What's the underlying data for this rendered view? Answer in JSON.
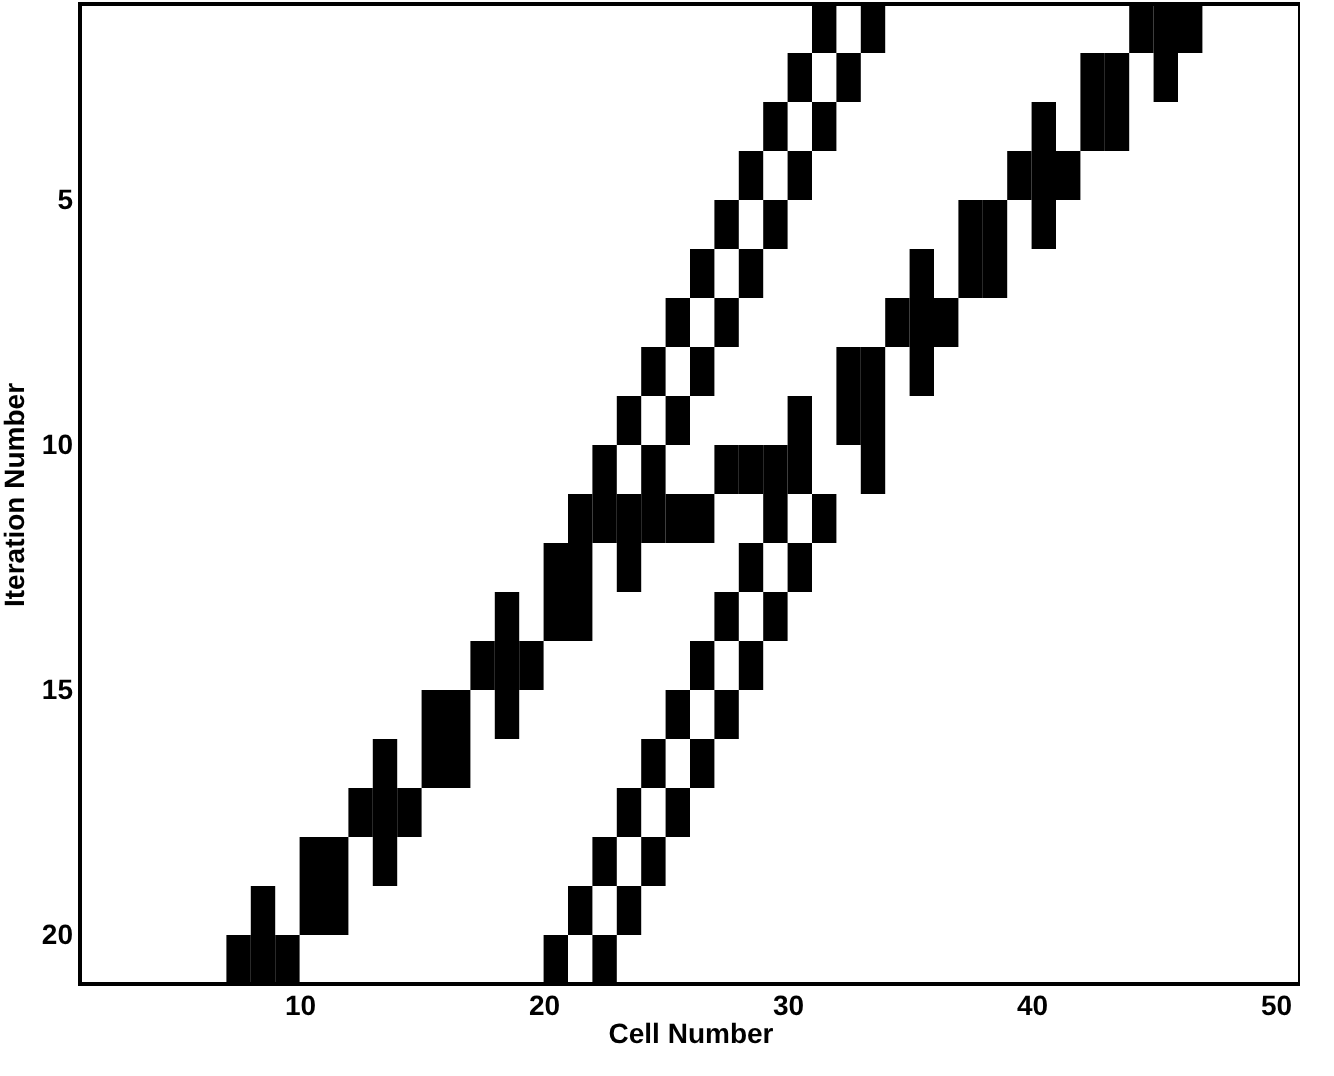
{
  "chart_data": {
    "type": "scatter",
    "xlabel": "Cell Number",
    "ylabel": "Iteration Number",
    "marker": "square",
    "grid": false,
    "xlim": [
      1,
      51
    ],
    "xticks": [
      10,
      20,
      30,
      40,
      50
    ],
    "ylim": [
      21,
      1
    ],
    "yticks": [
      5,
      10,
      15,
      20
    ],
    "series": [
      {
        "color": "#000000",
        "x": [
          31.5,
          33.5,
          44.5,
          45.5,
          46.5,
          30.5,
          32.5,
          42.5,
          43.5,
          45.5,
          29.5,
          31.5,
          40.5,
          42.5,
          43.5,
          28.5,
          30.5,
          39.5,
          40.5,
          41.5,
          27.5,
          29.5,
          37.5,
          38.5,
          40.5,
          26.5,
          28.5,
          35.5,
          37.5,
          38.5,
          25.5,
          27.5,
          34.5,
          35.5,
          36.5,
          24.5,
          26.5,
          32.5,
          33.5,
          35.5,
          23.5,
          25.5,
          30.5,
          32.5,
          33.5,
          22.5,
          24.5,
          27.5,
          28.5,
          29.5,
          30.5,
          33.5,
          21.5,
          22.5,
          23.5,
          24.5,
          25.5,
          26.5,
          29.5,
          31.5,
          20.5,
          21.5,
          23.5,
          28.5,
          30.5,
          18.5,
          20.5,
          21.5,
          27.5,
          29.5,
          17.5,
          18.5,
          19.5,
          26.5,
          28.5,
          15.5,
          16.5,
          18.5,
          25.5,
          27.5,
          13.5,
          15.5,
          16.5,
          24.5,
          26.5,
          12.5,
          13.5,
          14.5,
          23.5,
          25.5,
          10.5,
          11.5,
          13.5,
          22.5,
          24.5,
          8.5,
          10.5,
          11.5,
          21.5,
          23.5,
          7.5,
          8.5,
          9.5,
          20.5,
          22.5
        ],
        "values": [
          1.5,
          1.5,
          1.5,
          1.5,
          1.5,
          2.5,
          2.5,
          2.5,
          2.5,
          2.5,
          3.5,
          3.5,
          3.5,
          3.5,
          3.5,
          4.5,
          4.5,
          4.5,
          4.5,
          4.5,
          5.5,
          5.5,
          5.5,
          5.5,
          5.5,
          6.5,
          6.5,
          6.5,
          6.5,
          6.5,
          7.5,
          7.5,
          7.5,
          7.5,
          7.5,
          8.5,
          8.5,
          8.5,
          8.5,
          8.5,
          9.5,
          9.5,
          9.5,
          9.5,
          9.5,
          10.5,
          10.5,
          10.5,
          10.5,
          10.5,
          10.5,
          10.5,
          11.5,
          11.5,
          11.5,
          11.5,
          11.5,
          11.5,
          11.5,
          11.5,
          12.5,
          12.5,
          12.5,
          12.5,
          12.5,
          13.5,
          13.5,
          13.5,
          13.5,
          13.5,
          14.5,
          14.5,
          14.5,
          14.5,
          14.5,
          15.5,
          15.5,
          15.5,
          15.5,
          15.5,
          16.5,
          16.5,
          16.5,
          16.5,
          16.5,
          17.5,
          17.5,
          17.5,
          17.5,
          17.5,
          18.5,
          18.5,
          18.5,
          18.5,
          18.5,
          19.5,
          19.5,
          19.5,
          19.5,
          19.5,
          20.5,
          20.5,
          20.5,
          20.5,
          20.5
        ]
      }
    ]
  }
}
